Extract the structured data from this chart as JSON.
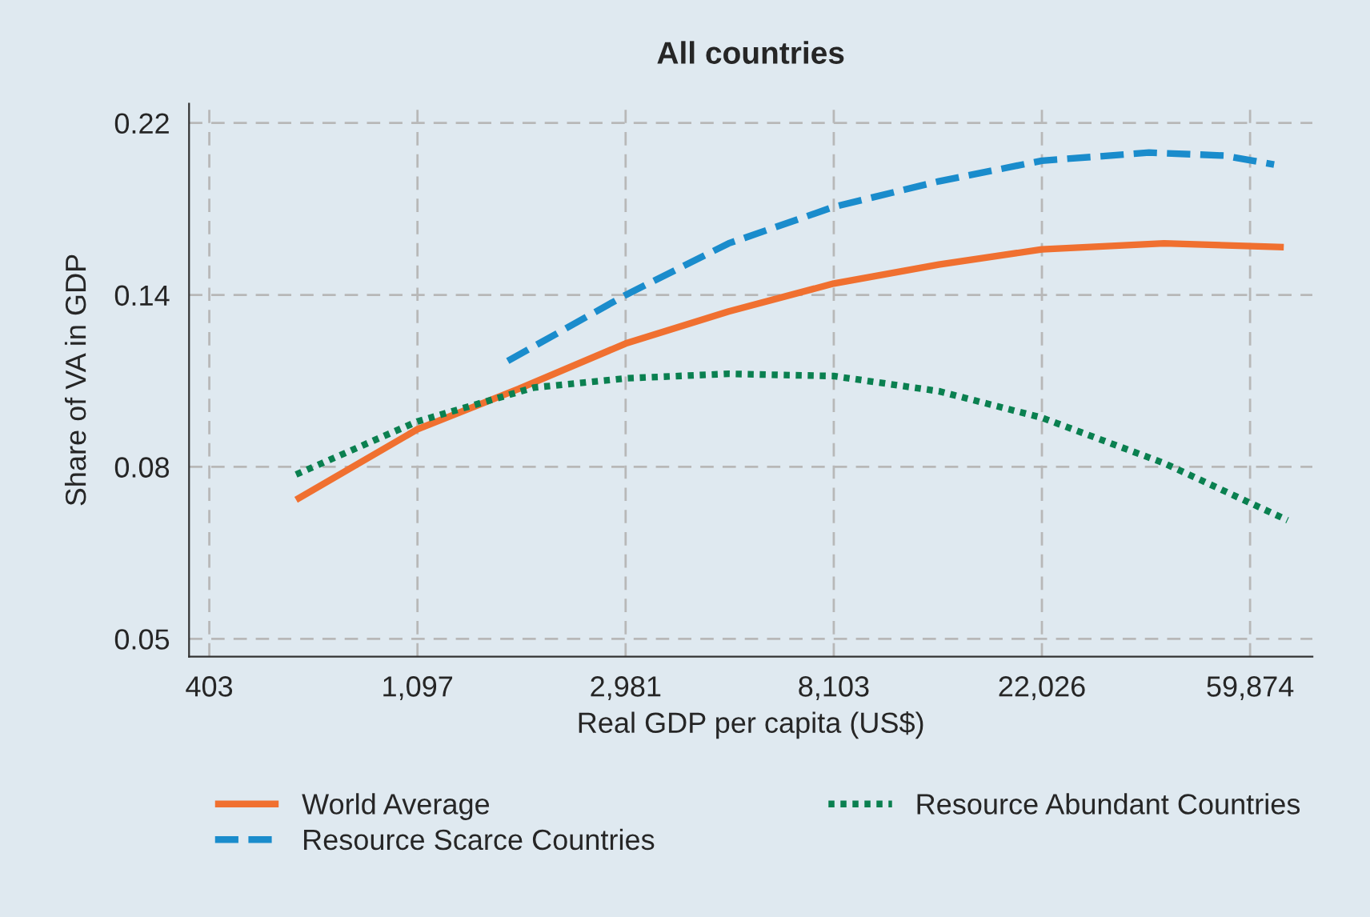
{
  "chart_data": {
    "type": "line",
    "title": "All countries",
    "xlabel": "Real GDP per capita (US$)",
    "ylabel": "Share of VA in GDP",
    "log": "xy",
    "xlim": [
      366,
      80800
    ],
    "ylim": [
      0.0473,
      0.236
    ],
    "xticks": [
      {
        "value": 403.4,
        "label": "403"
      },
      {
        "value": 1096.6,
        "label": "1,097"
      },
      {
        "value": 2981,
        "label": "2,981"
      },
      {
        "value": 8103,
        "label": "8,103"
      },
      {
        "value": 22026,
        "label": "22,026"
      },
      {
        "value": 59874,
        "label": "59,874"
      }
    ],
    "yticks": [
      {
        "value": 0.0498,
        "label": "0.05"
      },
      {
        "value": 0.0821,
        "label": "0.08"
      },
      {
        "value": 0.1353,
        "label": "0.14"
      },
      {
        "value": 0.2231,
        "label": "0.22"
      }
    ],
    "grid": true,
    "legend": "bottom",
    "series": [
      {
        "name": "World Average",
        "color": "#f07030",
        "line_style": "solid",
        "x": [
          612,
          1097,
          1785,
          2981,
          4890,
          8103,
          13420,
          22026,
          39600,
          70400
        ],
        "values": [
          0.0746,
          0.0916,
          0.103,
          0.1175,
          0.129,
          0.1399,
          0.1478,
          0.1545,
          0.1572,
          0.1555
        ]
      },
      {
        "name": "Resource Scarce Countries",
        "color": "#1a8ccc",
        "line_style": "dashed",
        "x": [
          1692,
          2981,
          4890,
          8103,
          13420,
          22026,
          36850,
          52800,
          67200
        ],
        "values": [
          0.1117,
          0.1353,
          0.1572,
          0.1748,
          0.1883,
          0.1999,
          0.2047,
          0.2029,
          0.1977
        ]
      },
      {
        "name": "Resource Abundant Countries",
        "color": "#0a8050",
        "line_style": "dotted",
        "x": [
          612,
          1097,
          1920,
          2981,
          4890,
          8103,
          13420,
          22026,
          39600,
          71700
        ],
        "values": [
          0.0803,
          0.0937,
          0.1034,
          0.1062,
          0.1076,
          0.1069,
          0.1023,
          0.0947,
          0.083,
          0.0703
        ]
      }
    ]
  }
}
